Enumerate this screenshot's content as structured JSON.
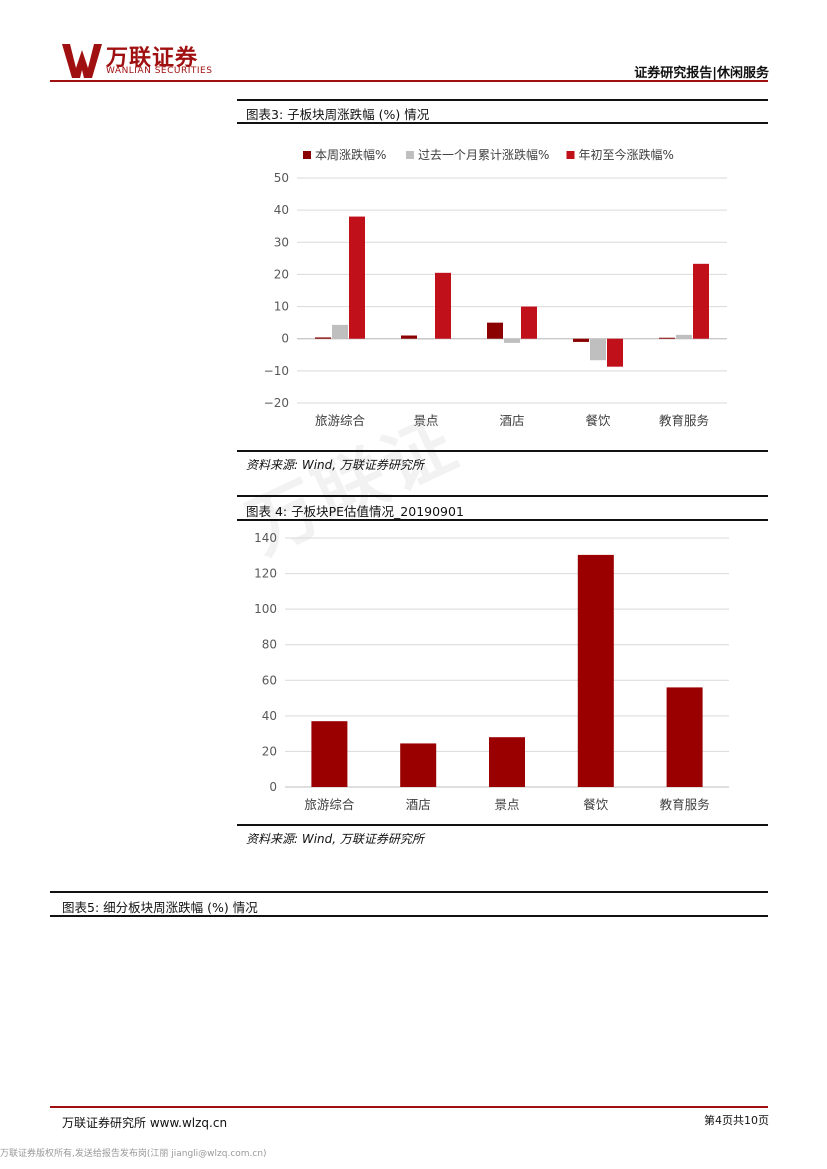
{
  "header": {
    "logo_cn": "万联证券",
    "logo_en": "WANLIAN SECURITIES",
    "right_title": "证券研究报告|休闲服务"
  },
  "watermark": "万联证",
  "fig3": {
    "caption": "图表3: 子板块周涨跌幅 (%) 情况",
    "source": "资料来源: Wind, 万联证券研究所"
  },
  "fig4": {
    "caption": "图表 4: 子板块PE估值情况_20190901",
    "source": "资料来源: Wind, 万联证券研究所"
  },
  "fig5": {
    "caption": "图表5: 细分板块周涨跌幅 (%) 情况"
  },
  "chart_data": [
    {
      "type": "bar",
      "categories": [
        "旅游综合",
        "景点",
        "酒店",
        "餐饮",
        "教育服务"
      ],
      "series": [
        {
          "name": "本周涨跌幅%",
          "color": "#8b0000",
          "values": [
            0.4,
            1.0,
            5.0,
            -1.0,
            0.3
          ]
        },
        {
          "name": "过去一个月累计涨跌幅%",
          "color": "#bfbfbf",
          "values": [
            4.3,
            -0.2,
            -1.3,
            -6.7,
            1.2
          ]
        },
        {
          "name": "年初至今涨跌幅%",
          "color": "#c0101a",
          "values": [
            38.0,
            20.5,
            10.0,
            -8.7,
            23.3
          ]
        }
      ],
      "yticks": [
        "50",
        "40",
        "30",
        "20",
        "10",
        "0",
        "−10",
        "−20"
      ],
      "ylim": [
        -20,
        50
      ],
      "legend": "top",
      "grid": true
    },
    {
      "type": "bar",
      "categories": [
        "旅游综合",
        "酒店",
        "景点",
        "餐饮",
        "教育服务"
      ],
      "series": [
        {
          "color": "#9b0000",
          "values": [
            37.0,
            24.5,
            28.0,
            130.5,
            56.0
          ]
        }
      ],
      "yticks": [
        "140",
        "120",
        "100",
        "80",
        "60",
        "40",
        "20",
        "0"
      ],
      "ylim": [
        0,
        140
      ],
      "grid": true
    }
  ],
  "footer": {
    "left": "万联证券研究所 www.wlzq.cn",
    "right": "第4页共10页",
    "note": "万联证券版权所有,发送给报告发布岗(江丽 jiangli@wlzq.com.cn)"
  }
}
